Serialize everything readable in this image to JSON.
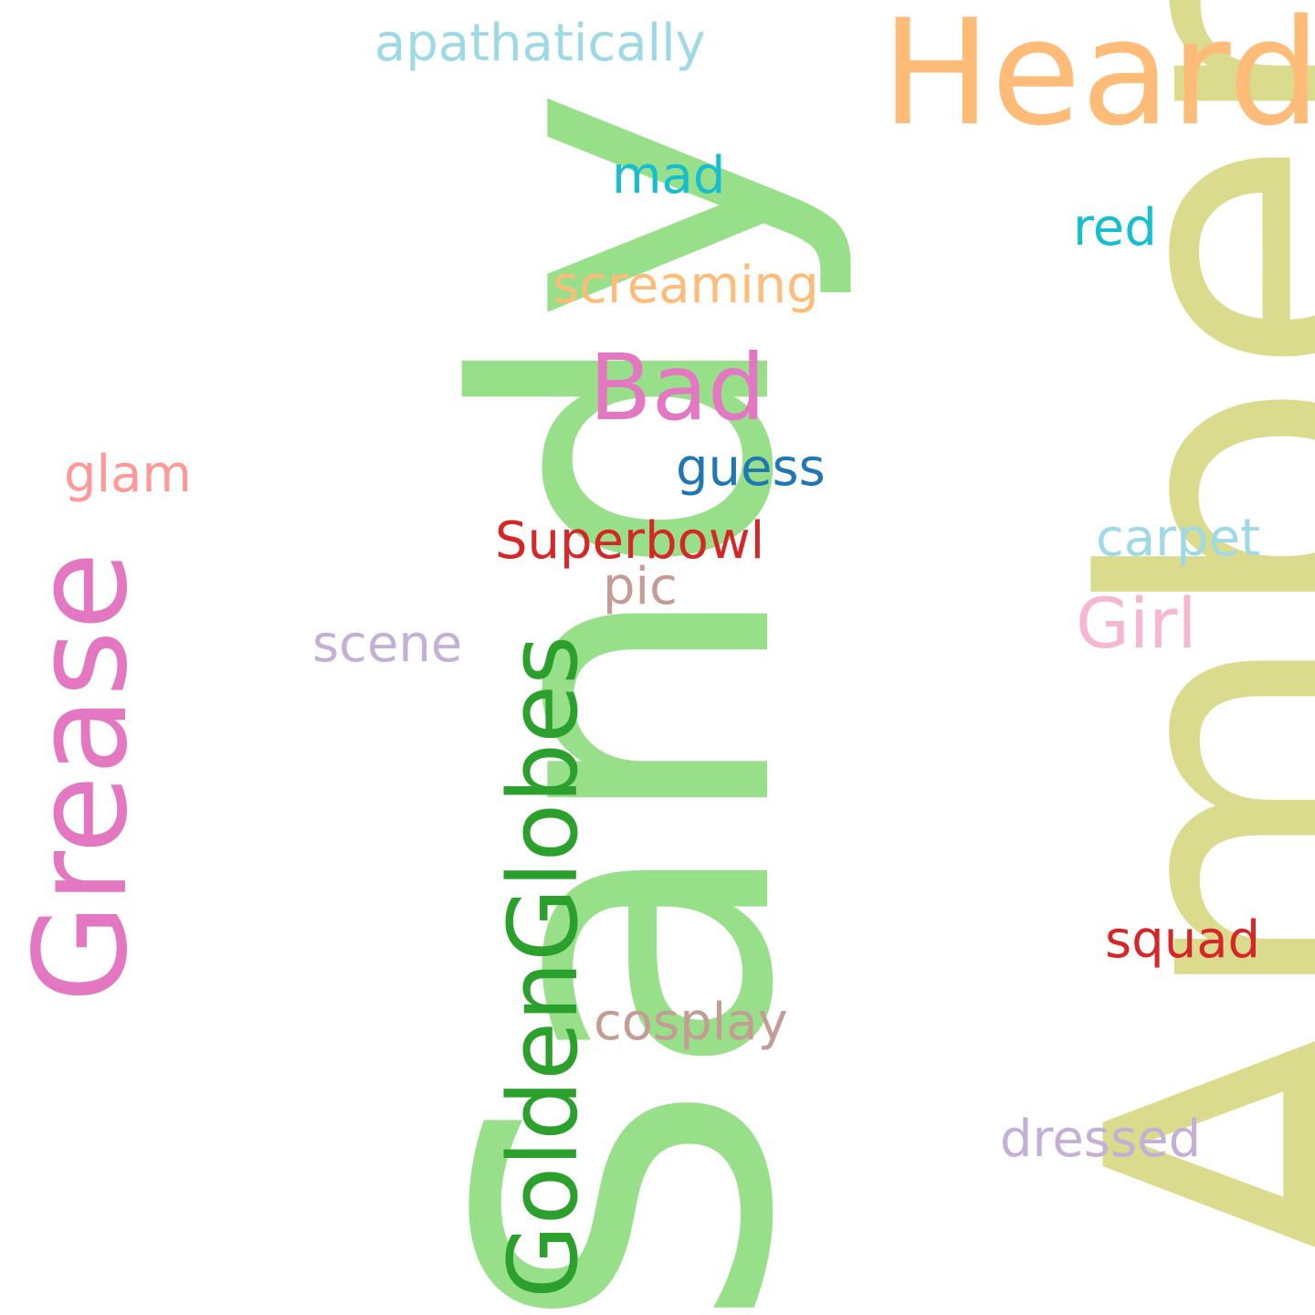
{
  "words": {
    "sandy": {
      "text": "Sandy",
      "color": "#98df8a"
    },
    "amber": {
      "text": "Amber",
      "color": "#dbdb8d"
    },
    "heard": {
      "text": "Heard",
      "color": "#ffbb78"
    },
    "grease": {
      "text": "Grease",
      "color": "#e377c2"
    },
    "goldenglobes": {
      "text": "GoldenGlobes",
      "color": "#2ca02c"
    },
    "bad": {
      "text": "Bad",
      "color": "#e377c2"
    },
    "apathatically": {
      "text": "apathatically",
      "color": "#9edae5"
    },
    "mad": {
      "text": "mad",
      "color": "#17becf"
    },
    "red": {
      "text": "red",
      "color": "#17becf"
    },
    "screaming": {
      "text": "screaming",
      "color": "#ffbb78"
    },
    "guess": {
      "text": "guess",
      "color": "#1f77b4"
    },
    "glam": {
      "text": "glam",
      "color": "#ff9896"
    },
    "superbowl": {
      "text": "Superbowl",
      "color": "#d62728"
    },
    "carpet": {
      "text": "carpet",
      "color": "#9edae5"
    },
    "pic": {
      "text": "pic",
      "color": "#c49c94"
    },
    "girl": {
      "text": "Girl",
      "color": "#f7b6d2"
    },
    "scene": {
      "text": "scene",
      "color": "#c5b0d5"
    },
    "squad": {
      "text": "squad",
      "color": "#d62728"
    },
    "cosplay": {
      "text": "cosplay",
      "color": "#c49c94"
    },
    "dressed": {
      "text": "dressed",
      "color": "#c5b0d5"
    }
  }
}
